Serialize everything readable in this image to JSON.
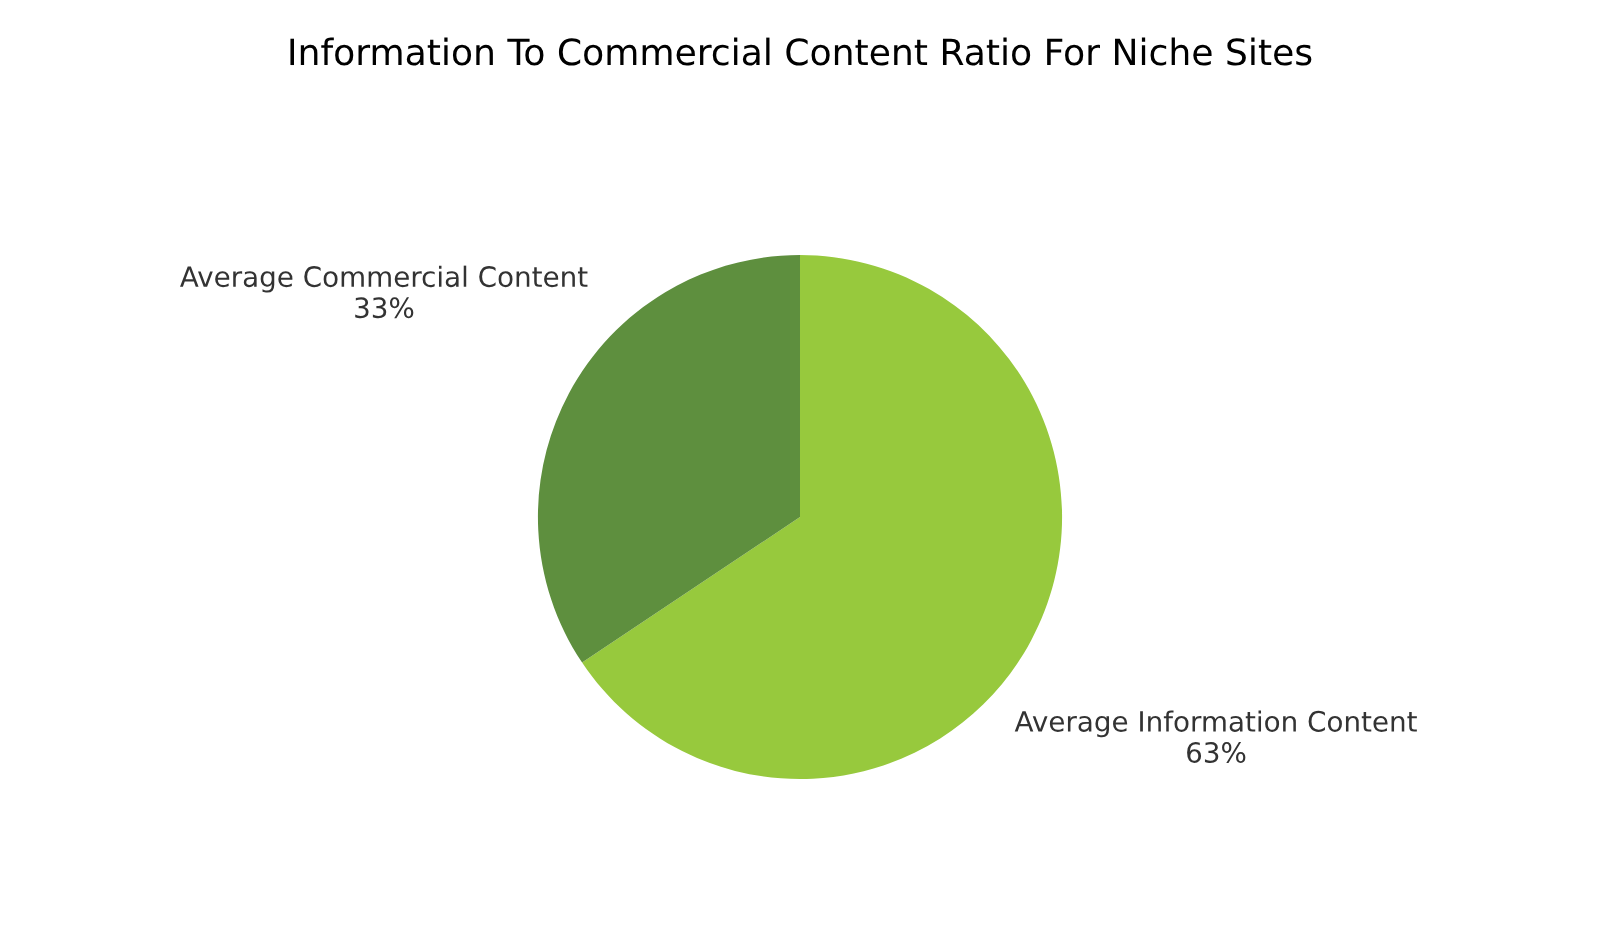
{
  "chart_data": {
    "type": "pie",
    "title": "Information To Commercial Content Ratio For Niche Sites",
    "categories": [
      "Average Information Content",
      "Average Commercial Content"
    ],
    "values": [
      63,
      33
    ],
    "value_labels": [
      "63%",
      "33%"
    ],
    "colors": [
      "#97c93d",
      "#5e8f3e"
    ],
    "legend": false
  }
}
